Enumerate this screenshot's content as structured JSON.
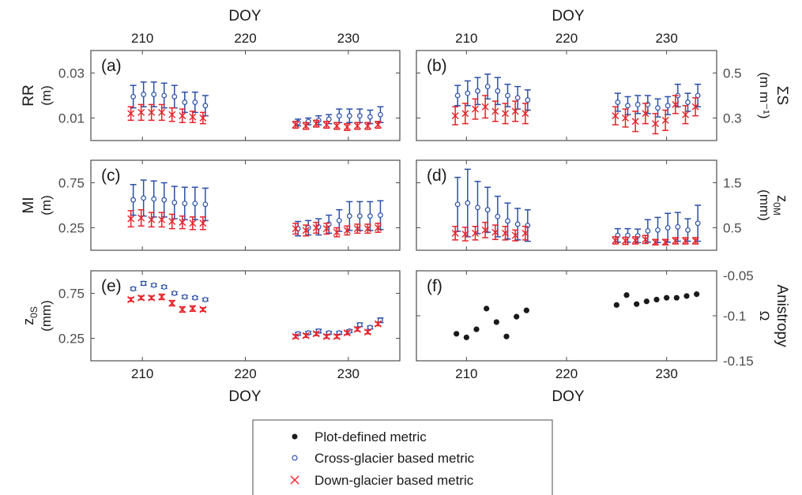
{
  "figure": {
    "top_axis_label": "DOY",
    "bottom_axis_label": "DOY",
    "x_range": [
      205,
      235
    ],
    "x_ticks": [
      210,
      220,
      230
    ]
  },
  "legend": {
    "entries": [
      {
        "marker": "filled-dot",
        "color": "#1a1a1a",
        "label": "Plot-defined metric"
      },
      {
        "marker": "open-circle",
        "color": "#2b4fa8",
        "label": "Cross-glacier based metric"
      },
      {
        "marker": "cross",
        "color": "#e8232a",
        "label": "Down-glacier based metric"
      }
    ]
  },
  "colors": {
    "cross": "#2b4fa8",
    "down": "#e8232a",
    "plot": "#1a1a1a",
    "axis": "#4d4d4d"
  },
  "chart_data": [
    {
      "type": "scatter",
      "panel": "a",
      "tag": "(a)",
      "ylabel_lines": [
        "RR",
        "(m)"
      ],
      "ylabel_side": "left",
      "ylim": [
        0,
        0.04
      ],
      "yticks": [
        0.01,
        0.03
      ],
      "ytick_labels": [
        "0.01",
        "0.03"
      ],
      "series": [
        {
          "name": "Cross-glacier based metric",
          "x": [
            209,
            210,
            211,
            212,
            213,
            214,
            215,
            216,
            225,
            226,
            227,
            228,
            229,
            230,
            231,
            232,
            233
          ],
          "y": [
            0.0195,
            0.0205,
            0.0205,
            0.02,
            0.0195,
            0.017,
            0.017,
            0.0155,
            0.008,
            0.0085,
            0.009,
            0.0095,
            0.011,
            0.011,
            0.011,
            0.0105,
            0.0115
          ],
          "err": [
            0.005,
            0.0055,
            0.0055,
            0.0055,
            0.005,
            0.0045,
            0.0045,
            0.0045,
            0.0015,
            0.0015,
            0.002,
            0.002,
            0.003,
            0.003,
            0.003,
            0.003,
            0.0035
          ]
        },
        {
          "name": "Down-glacier based metric",
          "x": [
            209,
            210,
            211,
            212,
            213,
            214,
            215,
            216,
            225,
            226,
            227,
            228,
            229,
            230,
            231,
            232,
            233
          ],
          "y": [
            0.012,
            0.0125,
            0.0125,
            0.0125,
            0.0115,
            0.011,
            0.0105,
            0.01,
            0.007,
            0.0065,
            0.0075,
            0.007,
            0.0065,
            0.006,
            0.0065,
            0.0065,
            0.007
          ],
          "err": [
            0.003,
            0.0035,
            0.0035,
            0.0035,
            0.003,
            0.003,
            0.0025,
            0.0025,
            0.0015,
            0.0015,
            0.0015,
            0.0015,
            0.0015,
            0.0015,
            0.0015,
            0.0015,
            0.0015
          ]
        }
      ]
    },
    {
      "type": "scatter",
      "panel": "b",
      "tag": "(b)",
      "ylabel_lines": [
        "ΣS",
        "(m m⁻¹)"
      ],
      "ylabel_side": "right",
      "ylim": [
        0.2,
        0.6
      ],
      "yticks": [
        0.3,
        0.5
      ],
      "ytick_labels": [
        "0.3",
        "0.5"
      ],
      "series": [
        {
          "name": "Cross-glacier based metric",
          "x": [
            209,
            210,
            211,
            212,
            213,
            214,
            215,
            216,
            225,
            226,
            227,
            228,
            229,
            230,
            231,
            232,
            233
          ],
          "y": [
            0.4,
            0.41,
            0.42,
            0.44,
            0.42,
            0.4,
            0.39,
            0.38,
            0.37,
            0.355,
            0.36,
            0.36,
            0.345,
            0.355,
            0.4,
            0.37,
            0.4
          ],
          "err": [
            0.045,
            0.055,
            0.06,
            0.055,
            0.06,
            0.05,
            0.05,
            0.045,
            0.04,
            0.04,
            0.04,
            0.04,
            0.04,
            0.04,
            0.05,
            0.04,
            0.05
          ]
        },
        {
          "name": "Down-glacier based metric",
          "x": [
            209,
            210,
            211,
            212,
            213,
            214,
            215,
            216,
            225,
            226,
            227,
            228,
            229,
            230,
            231,
            232,
            233
          ],
          "y": [
            0.31,
            0.32,
            0.34,
            0.35,
            0.33,
            0.32,
            0.33,
            0.32,
            0.31,
            0.3,
            0.285,
            0.32,
            0.275,
            0.29,
            0.36,
            0.315,
            0.35
          ],
          "err": [
            0.04,
            0.045,
            0.045,
            0.05,
            0.045,
            0.045,
            0.045,
            0.045,
            0.04,
            0.04,
            0.045,
            0.045,
            0.045,
            0.045,
            0.04,
            0.04,
            0.04
          ]
        }
      ]
    },
    {
      "type": "scatter",
      "panel": "c",
      "tag": "(c)",
      "ylabel_lines": [
        "MI",
        "(m)"
      ],
      "ylabel_side": "left",
      "ylim": [
        0,
        1.0
      ],
      "yticks": [
        0.25,
        0.75
      ],
      "ytick_labels": [
        "0.25",
        "0.75"
      ],
      "series": [
        {
          "name": "Cross-glacier based metric",
          "x": [
            209,
            210,
            211,
            212,
            213,
            214,
            215,
            216,
            225,
            226,
            227,
            228,
            229,
            230,
            231,
            232,
            233
          ],
          "y": [
            0.56,
            0.58,
            0.57,
            0.56,
            0.53,
            0.52,
            0.52,
            0.51,
            0.24,
            0.25,
            0.26,
            0.29,
            0.33,
            0.38,
            0.38,
            0.38,
            0.39
          ],
          "err": [
            0.17,
            0.2,
            0.2,
            0.19,
            0.18,
            0.18,
            0.18,
            0.18,
            0.08,
            0.08,
            0.09,
            0.1,
            0.12,
            0.16,
            0.16,
            0.16,
            0.16
          ]
        },
        {
          "name": "Down-glacier based metric",
          "x": [
            209,
            210,
            211,
            212,
            213,
            214,
            215,
            216,
            225,
            226,
            227,
            228,
            229,
            230,
            231,
            232,
            233
          ],
          "y": [
            0.35,
            0.36,
            0.34,
            0.34,
            0.32,
            0.31,
            0.3,
            0.3,
            0.24,
            0.22,
            0.25,
            0.24,
            0.2,
            0.22,
            0.24,
            0.24,
            0.25
          ],
          "err": [
            0.09,
            0.09,
            0.08,
            0.08,
            0.08,
            0.07,
            0.07,
            0.07,
            0.06,
            0.06,
            0.06,
            0.06,
            0.05,
            0.05,
            0.05,
            0.05,
            0.05
          ]
        }
      ]
    },
    {
      "type": "scatter",
      "panel": "d",
      "tag": "(d)",
      "ylabel_lines": [
        "z0M",
        "(mm)"
      ],
      "ylabel_side": "right",
      "ylim": [
        0,
        2.0
      ],
      "yticks": [
        0.5,
        1.5
      ],
      "ytick_labels": [
        "0.5",
        "1.5"
      ],
      "series": [
        {
          "name": "Cross-glacier based metric",
          "x": [
            209,
            210,
            211,
            212,
            213,
            214,
            215,
            216,
            225,
            226,
            227,
            228,
            229,
            230,
            231,
            232,
            233
          ],
          "y": [
            1.02,
            1.05,
            0.95,
            0.9,
            0.75,
            0.65,
            0.58,
            0.55,
            0.33,
            0.33,
            0.32,
            0.43,
            0.45,
            0.5,
            0.52,
            0.45,
            0.6
          ],
          "err": [
            0.6,
            0.75,
            0.58,
            0.5,
            0.45,
            0.4,
            0.35,
            0.35,
            0.15,
            0.15,
            0.15,
            0.25,
            0.28,
            0.32,
            0.32,
            0.25,
            0.4
          ]
        },
        {
          "name": "Down-glacier based metric",
          "x": [
            209,
            210,
            211,
            212,
            213,
            214,
            215,
            216,
            225,
            226,
            227,
            228,
            229,
            230,
            231,
            232,
            233
          ],
          "y": [
            0.38,
            0.36,
            0.38,
            0.45,
            0.4,
            0.38,
            0.33,
            0.38,
            0.22,
            0.21,
            0.22,
            0.24,
            0.18,
            0.18,
            0.21,
            0.21,
            0.21
          ],
          "err": [
            0.15,
            0.15,
            0.15,
            0.17,
            0.16,
            0.15,
            0.12,
            0.15,
            0.08,
            0.08,
            0.08,
            0.09,
            0.06,
            0.06,
            0.07,
            0.07,
            0.07
          ]
        }
      ]
    },
    {
      "type": "scatter",
      "panel": "e",
      "tag": "(e)",
      "ylabel_lines": [
        "z0S",
        "(mm)"
      ],
      "ylabel_side": "left",
      "ylim": [
        0,
        1.0
      ],
      "yticks": [
        0.25,
        0.75
      ],
      "ytick_labels": [
        "0.25",
        "0.75"
      ],
      "series": [
        {
          "name": "Cross-glacier based metric",
          "x": [
            209,
            210,
            211,
            212,
            213,
            214,
            215,
            216,
            225,
            226,
            227,
            228,
            229,
            230,
            231,
            232,
            233
          ],
          "y": [
            0.8,
            0.86,
            0.84,
            0.82,
            0.75,
            0.71,
            0.7,
            0.68,
            0.3,
            0.31,
            0.33,
            0.31,
            0.31,
            0.33,
            0.4,
            0.37,
            0.45
          ],
          "err": [
            0.015,
            0.02,
            0.015,
            0.015,
            0.015,
            0.015,
            0.015,
            0.015,
            0.015,
            0.015,
            0.02,
            0.015,
            0.015,
            0.015,
            0.02,
            0.015,
            0.025
          ]
        },
        {
          "name": "Down-glacier based metric",
          "x": [
            209,
            210,
            211,
            212,
            213,
            214,
            215,
            216,
            225,
            226,
            227,
            228,
            229,
            230,
            231,
            232,
            233
          ],
          "y": [
            0.68,
            0.7,
            0.7,
            0.71,
            0.64,
            0.57,
            0.58,
            0.57,
            0.27,
            0.28,
            0.3,
            0.27,
            0.27,
            0.31,
            0.35,
            0.32,
            0.41
          ],
          "err": [
            0.02,
            0.02,
            0.02,
            0.03,
            0.03,
            0.03,
            0.03,
            0.02,
            0.02,
            0.02,
            0.02,
            0.02,
            0.02,
            0.02,
            0.02,
            0.02,
            0.02
          ]
        }
      ]
    },
    {
      "type": "scatter",
      "panel": "f",
      "tag": "(f)",
      "ylabel_lines": [
        "Anistropy",
        "Ω"
      ],
      "ylabel_side": "right",
      "ylim": [
        -0.15,
        -0.05
      ],
      "yticks": [
        -0.15,
        -0.1,
        -0.05
      ],
      "ytick_labels": [
        "-0.15",
        "-0.1",
        "-0.05"
      ],
      "series": [
        {
          "name": "Plot-defined metric",
          "x": [
            209,
            210,
            211,
            212,
            213,
            214,
            215,
            216,
            225,
            226,
            227,
            228,
            229,
            230,
            231,
            232,
            233
          ],
          "y": [
            -0.12,
            -0.124,
            -0.115,
            -0.092,
            -0.107,
            -0.123,
            -0.101,
            -0.094,
            -0.088,
            -0.077,
            -0.087,
            -0.084,
            -0.082,
            -0.08,
            -0.08,
            -0.078,
            -0.076
          ]
        }
      ]
    }
  ]
}
